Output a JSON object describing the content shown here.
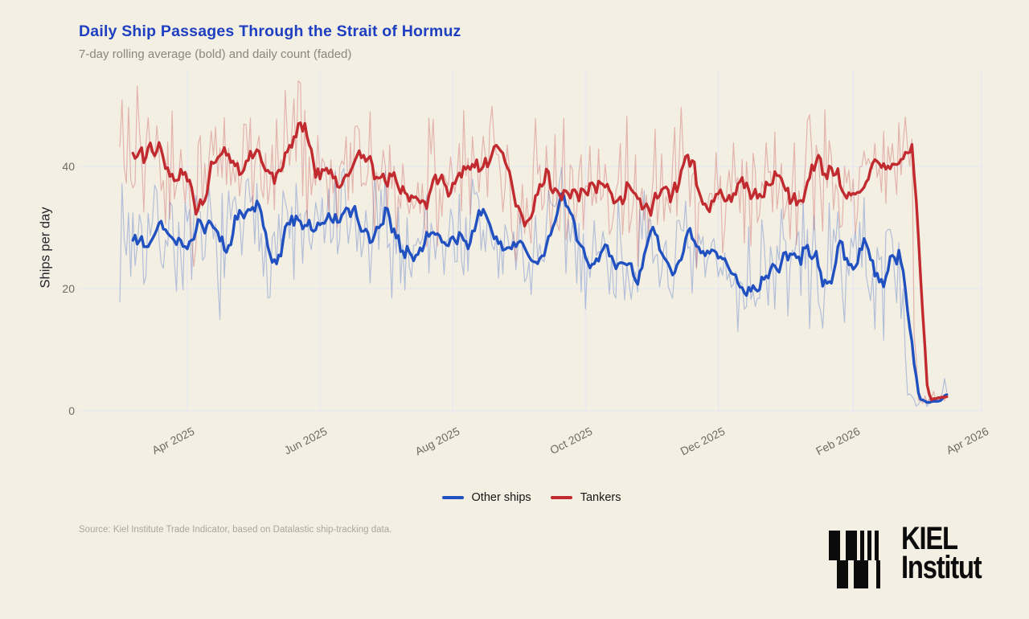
{
  "page": {
    "background": "#f3efe3"
  },
  "chart_data": {
    "type": "line",
    "title": "Daily Ship Passages Through the Strait of Hormuz",
    "subtitle": "7-day rolling average (bold) and daily count (faded)",
    "ylabel": "Ships per day",
    "ylim": [
      0,
      55
    ],
    "y_ticks": [
      0,
      20,
      40
    ],
    "x_ticks": [
      {
        "label": "Apr 2025",
        "day": 31
      },
      {
        "label": "Jun 2025",
        "day": 92
      },
      {
        "label": "Aug 2025",
        "day": 153
      },
      {
        "label": "Oct 2025",
        "day": 214
      },
      {
        "label": "Dec 2025",
        "day": 275
      },
      {
        "label": "Feb 2026",
        "day": 337
      },
      {
        "label": "Apr 2026",
        "day": 396
      }
    ],
    "x_start_date": "2025-03-01",
    "x_end_date": "2026-03-15",
    "grid": true,
    "grid_color": "#e9eaef",
    "legend_position": "bottom-center",
    "noise_seed": 7,
    "representation": "Each series shows a bold 7-day rolling average plus a faded daily-count trace; both collapse to ~2 ships/day in early March 2026.",
    "series": [
      {
        "name": "Other ships",
        "color": "#2151c0",
        "faded_opacity": 0.3,
        "daily_noise_amplitude": 12,
        "rolling_mean_knots": {
          "days": [
            6,
            13,
            20,
            27,
            34,
            41,
            48,
            55,
            62,
            69,
            76,
            83,
            90,
            97,
            104,
            111,
            118,
            125,
            132,
            139,
            146,
            153,
            160,
            167,
            174,
            181,
            188,
            195,
            202,
            209,
            216,
            223,
            230,
            237,
            244,
            251,
            258,
            265,
            272,
            279,
            286,
            293,
            300,
            307,
            314,
            321,
            328,
            335,
            342,
            349,
            352,
            354,
            356,
            358,
            359,
            360,
            361,
            362,
            366,
            370,
            374,
            377,
            379,
            380
          ],
          "values": [
            29,
            28.6,
            30,
            28,
            25.3,
            27.8,
            26,
            31,
            29.6,
            28.2,
            30.3,
            29,
            27.4,
            31.3,
            30,
            26.8,
            29.3,
            28.2,
            25.8,
            29.3,
            29.8,
            27.9,
            29.6,
            29.8,
            25.6,
            26.8,
            24.6,
            28.4,
            31.6,
            27,
            25.2,
            25.8,
            25,
            26,
            23.6,
            25.4,
            24.4,
            22.6,
            24,
            22.2,
            19.9,
            23.2,
            24.8,
            24,
            25.4,
            21.3,
            23.2,
            26.4,
            25,
            20.8,
            24.2,
            27,
            25.2,
            26.9,
            24,
            14,
            6,
            2.4,
            1.8,
            2.1,
            1.7,
            2.0,
            3.4,
            2.9
          ]
        }
      },
      {
        "name": "Tankers",
        "color": "#c12a2e",
        "faded_opacity": 0.3,
        "daily_noise_amplitude": 14,
        "rolling_mean_knots": {
          "days": [
            6,
            13,
            20,
            27,
            34,
            41,
            48,
            55,
            62,
            69,
            76,
            83,
            90,
            97,
            104,
            111,
            118,
            125,
            132,
            139,
            146,
            153,
            160,
            167,
            174,
            181,
            188,
            195,
            202,
            209,
            216,
            223,
            230,
            237,
            244,
            251,
            258,
            265,
            272,
            279,
            286,
            291,
            298,
            305,
            310,
            314,
            318,
            322,
            326,
            331,
            335,
            339,
            343,
            347,
            351,
            355,
            358,
            361,
            363,
            364,
            365,
            366,
            367,
            371,
            375,
            378,
            379,
            380
          ],
          "values": [
            39.8,
            44,
            40.5,
            38,
            34.8,
            39.3,
            37,
            40.2,
            38,
            41.8,
            44.4,
            43,
            38.3,
            37.6,
            41.3,
            38.6,
            35.2,
            36.8,
            34.2,
            38.6,
            39.5,
            37.2,
            39.8,
            38,
            40.3,
            36.5,
            34.9,
            38.7,
            39.8,
            36.2,
            37.5,
            35.4,
            37,
            36,
            34.4,
            35.5,
            38.6,
            36,
            34.2,
            37.3,
            37.5,
            33.8,
            38.5,
            40.3,
            36.5,
            38,
            41.3,
            40.5,
            38.2,
            36.5,
            38.3,
            36.8,
            41.5,
            38,
            37.8,
            41.3,
            40.2,
            41.3,
            40.5,
            34,
            20,
            8,
            2.6,
            2.0,
            2.3,
            2.4,
            3.2,
            2.8
          ]
        }
      }
    ]
  },
  "source": {
    "text": "Source: Kiel Institute Trade Indicator, based on Datalastic ship-tracking data."
  },
  "branding": {
    "line1": "KIEL",
    "line2": "Institut"
  }
}
